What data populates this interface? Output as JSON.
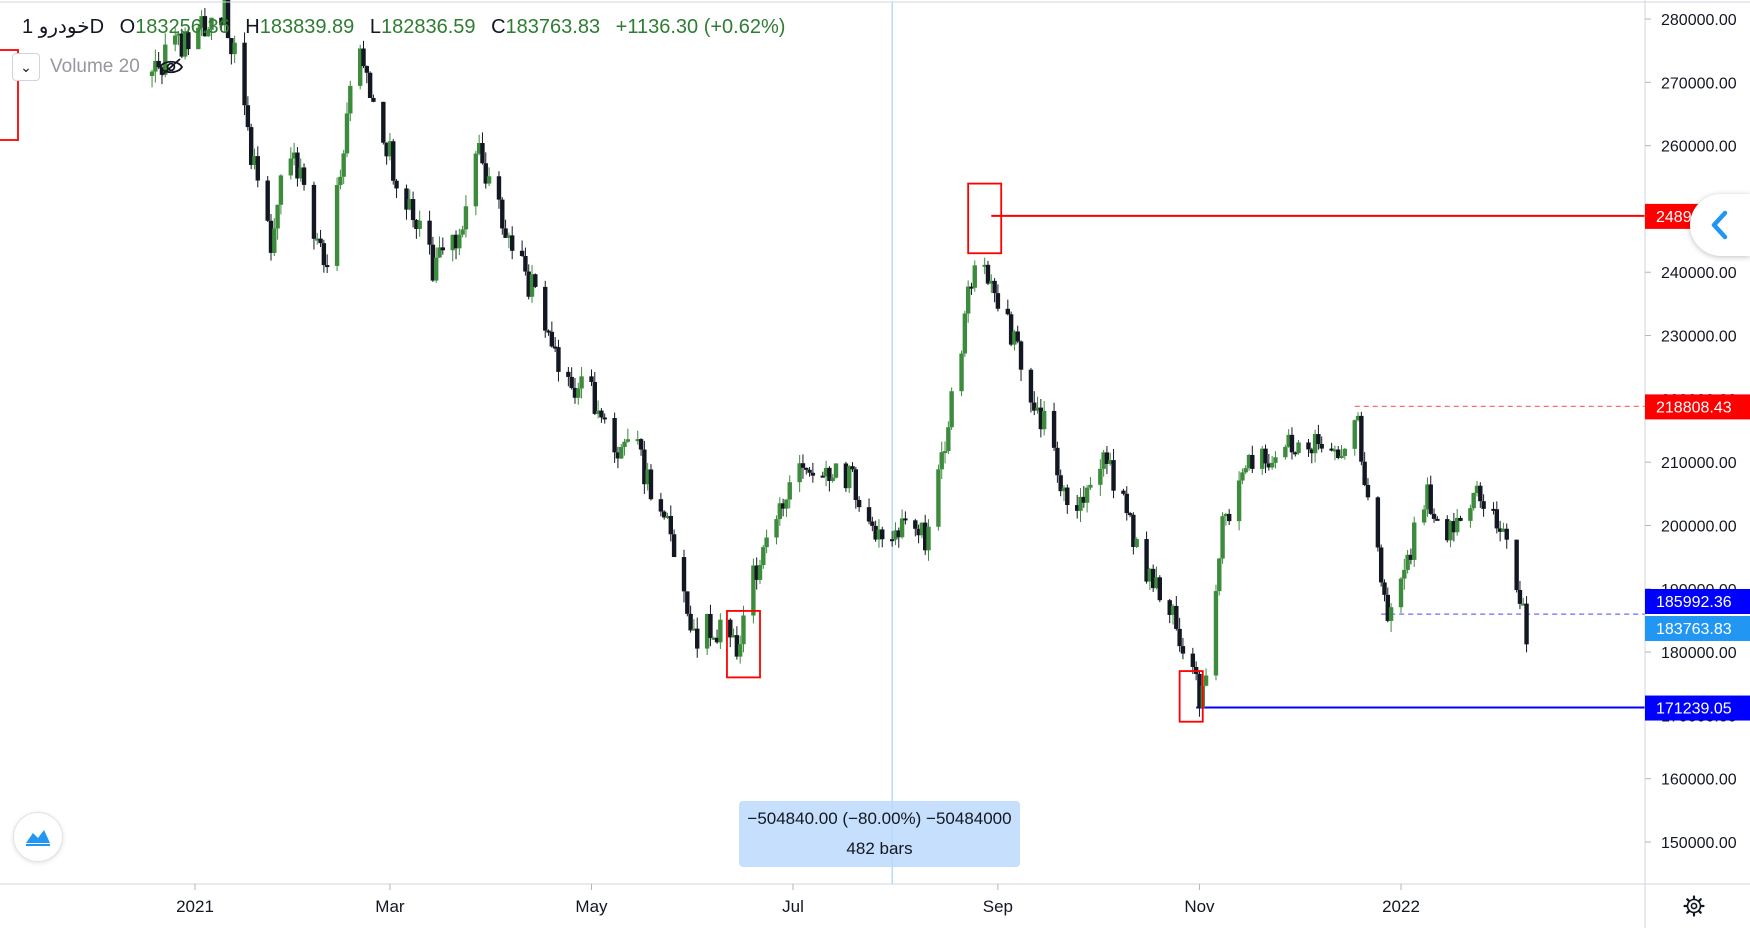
{
  "legend": {
    "symbol": "خودرو",
    "timeframe": "1D",
    "open_label": "O",
    "open": "183256.36",
    "high_label": "H",
    "high": "183839.89",
    "low_label": "L",
    "low": "182836.59",
    "close_label": "C",
    "close": "183763.83",
    "change": "+1136.30 (+0.62%)"
  },
  "volume_indicator": {
    "label": "Volume 20"
  },
  "measure": {
    "line1": "−504840.00 (−80.00%) −50484000",
    "line2": "482 bars"
  },
  "price_labels": {
    "red_top": "248900.00",
    "red_mid": "218808.43",
    "blue_a": "185992.36",
    "current": "183763.83",
    "blue_low": "171239.05"
  },
  "colors": {
    "up": "#3d8b3d",
    "down": "#131722",
    "red": "#ff0000",
    "blue": "#0000ff",
    "current": "#2196f3",
    "crosshair": "#90caf9",
    "dashed_blue": "#6a6aff",
    "dashed_red": "#ff6b6b"
  },
  "chart_data": {
    "type": "candlestick",
    "symbol": "خودرو",
    "interval": "1D",
    "y_axis": {
      "min": 142000,
      "max": 282000,
      "ticks": [
        150000,
        160000,
        170000,
        180000,
        190000,
        200000,
        210000,
        220000,
        230000,
        240000,
        250000,
        260000,
        270000,
        280000
      ],
      "tick_labels": [
        "150000.00",
        "160000.00",
        "170000.00",
        "180000.00",
        "190000.00",
        "200000.00",
        "210000.00",
        "220000.00",
        "230000.00",
        "240000.00",
        "250000.00",
        "260000.00",
        "270000.00",
        "280000.00"
      ],
      "position": "right"
    },
    "x_axis": {
      "labels": [
        "2021",
        "Mar",
        "May",
        "Jul",
        "Sep",
        "Nov",
        "2022"
      ],
      "label_dates": [
        "2021-01-01",
        "2021-03-01",
        "2021-05-01",
        "2021-07-01",
        "2021-09-01",
        "2021-11-01",
        "2022-01-01"
      ]
    },
    "series": [
      {
        "name": "خودرو",
        "points": [
          {
            "date": "2020-12-18",
            "price": 271000
          },
          {
            "date": "2021-01-10",
            "price": 282000
          },
          {
            "date": "2021-01-15",
            "price": 269000
          },
          {
            "date": "2021-01-20",
            "price": 253000
          },
          {
            "date": "2021-01-24",
            "price": 244000
          },
          {
            "date": "2021-01-29",
            "price": 262000
          },
          {
            "date": "2021-02-02",
            "price": 254000
          },
          {
            "date": "2021-02-06",
            "price": 246000
          },
          {
            "date": "2021-02-10",
            "price": 241000
          },
          {
            "date": "2021-02-14",
            "price": 255000
          },
          {
            "date": "2021-02-19",
            "price": 278000
          },
          {
            "date": "2021-02-24",
            "price": 266000
          },
          {
            "date": "2021-03-02",
            "price": 257000
          },
          {
            "date": "2021-03-08",
            "price": 249000
          },
          {
            "date": "2021-03-14",
            "price": 241000
          },
          {
            "date": "2021-03-20",
            "price": 244000
          },
          {
            "date": "2021-03-28",
            "price": 258000
          },
          {
            "date": "2021-04-03",
            "price": 250000
          },
          {
            "date": "2021-04-10",
            "price": 241000
          },
          {
            "date": "2021-04-17",
            "price": 233000
          },
          {
            "date": "2021-04-23",
            "price": 223000
          },
          {
            "date": "2021-05-01",
            "price": 221000
          },
          {
            "date": "2021-05-07",
            "price": 212000
          },
          {
            "date": "2021-05-13",
            "price": 214000
          },
          {
            "date": "2021-05-20",
            "price": 205000
          },
          {
            "date": "2021-05-26",
            "price": 197000
          },
          {
            "date": "2021-06-01",
            "price": 183000
          },
          {
            "date": "2021-06-08",
            "price": 184000
          },
          {
            "date": "2021-06-14",
            "price": 181000
          },
          {
            "date": "2021-06-20",
            "price": 194000
          },
          {
            "date": "2021-06-26",
            "price": 200000
          },
          {
            "date": "2021-07-02",
            "price": 210000
          },
          {
            "date": "2021-07-09",
            "price": 205000
          },
          {
            "date": "2021-07-15",
            "price": 210000
          },
          {
            "date": "2021-07-21",
            "price": 205000
          },
          {
            "date": "2021-07-27",
            "price": 198000
          },
          {
            "date": "2021-08-03",
            "price": 200000
          },
          {
            "date": "2021-08-10",
            "price": 198000
          },
          {
            "date": "2021-08-16",
            "price": 213000
          },
          {
            "date": "2021-08-21",
            "price": 228000
          },
          {
            "date": "2021-08-26",
            "price": 246000
          },
          {
            "date": "2021-08-30",
            "price": 237000
          },
          {
            "date": "2021-09-04",
            "price": 232000
          },
          {
            "date": "2021-09-10",
            "price": 223000
          },
          {
            "date": "2021-09-16",
            "price": 214000
          },
          {
            "date": "2021-09-22",
            "price": 203000
          },
          {
            "date": "2021-09-28",
            "price": 204000
          },
          {
            "date": "2021-10-04",
            "price": 210000
          },
          {
            "date": "2021-10-10",
            "price": 201000
          },
          {
            "date": "2021-10-16",
            "price": 193000
          },
          {
            "date": "2021-10-22",
            "price": 189000
          },
          {
            "date": "2021-10-28",
            "price": 180000
          },
          {
            "date": "2021-11-01",
            "price": 173000
          },
          {
            "date": "2021-11-04",
            "price": 178000
          },
          {
            "date": "2021-11-08",
            "price": 200000
          },
          {
            "date": "2021-11-14",
            "price": 209000
          },
          {
            "date": "2021-11-22",
            "price": 211000
          },
          {
            "date": "2021-11-30",
            "price": 213000
          },
          {
            "date": "2021-12-08",
            "price": 214000
          },
          {
            "date": "2021-12-13",
            "price": 209000
          },
          {
            "date": "2021-12-18",
            "price": 218800
          },
          {
            "date": "2021-12-23",
            "price": 202000
          },
          {
            "date": "2021-12-28",
            "price": 187000
          },
          {
            "date": "2022-01-03",
            "price": 195000
          },
          {
            "date": "2022-01-09",
            "price": 204000
          },
          {
            "date": "2022-01-14",
            "price": 198000
          },
          {
            "date": "2022-01-20",
            "price": 204000
          },
          {
            "date": "2022-01-26",
            "price": 205000
          },
          {
            "date": "2022-02-01",
            "price": 199000
          },
          {
            "date": "2022-02-05",
            "price": 190000
          },
          {
            "date": "2022-02-08",
            "price": 183800
          }
        ]
      }
    ],
    "annotations": [
      {
        "type": "hline",
        "value": 248900,
        "from_date": "2021-08-30",
        "style": "solid",
        "color": "red",
        "label": "248900.00"
      },
      {
        "type": "hline",
        "value": 218808.43,
        "from_date": "2021-12-18",
        "style": "dashed",
        "color": "red",
        "label": "218808.43"
      },
      {
        "type": "hline",
        "value": 185992.36,
        "from_date": "2021-12-26",
        "style": "dashed",
        "color": "blue",
        "label": "185992.36"
      },
      {
        "type": "hline",
        "value": 171239.05,
        "from_date": "2021-10-31",
        "style": "solid",
        "color": "blue",
        "label": "171239.05"
      },
      {
        "type": "rect",
        "from_date": "2021-08-23",
        "to_date": "2021-09-02",
        "from_price": 243000,
        "to_price": 254000,
        "color": "red"
      },
      {
        "type": "rect",
        "from_date": "2021-06-11",
        "to_date": "2021-06-21",
        "from_price": 176000,
        "to_price": 186500,
        "color": "red"
      },
      {
        "type": "rect",
        "from_date": "2021-10-26",
        "to_date": "2021-11-02",
        "from_price": 169000,
        "to_price": 177000,
        "color": "red"
      },
      {
        "type": "vline",
        "date": "2021-07-31",
        "color": "lightblue"
      }
    ],
    "current_price": 183763.83,
    "grid": false,
    "legend_position": "top-left"
  }
}
